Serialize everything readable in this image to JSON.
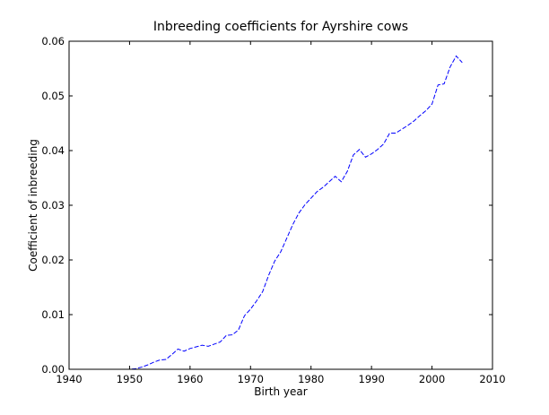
{
  "chart_data": {
    "type": "line",
    "title": "Inbreeding coefficients for Ayrshire cows",
    "xlabel": "Birth year",
    "ylabel": "Coefficient of inbreeding",
    "xlim": [
      1940,
      2010
    ],
    "ylim": [
      0.0,
      0.06
    ],
    "xticks": [
      "1940",
      "1950",
      "1960",
      "1970",
      "1980",
      "1990",
      "2000",
      "2010"
    ],
    "yticks": [
      "0.00",
      "0.01",
      "0.02",
      "0.03",
      "0.04",
      "0.05",
      "0.06"
    ],
    "grid": false,
    "line_style": "dashed",
    "colors": {
      "line": "#0000ff",
      "axes": "#000000"
    },
    "series": [
      {
        "x": [
          1940,
          1950,
          1951,
          1952,
          1953,
          1954,
          1955,
          1956,
          1957,
          1958,
          1959,
          1960,
          1961,
          1962,
          1963,
          1964,
          1965,
          1966,
          1967,
          1968,
          1969,
          1970,
          1971,
          1972,
          1973,
          1974,
          1975,
          1976,
          1977,
          1978,
          1979,
          1980,
          1981,
          1982,
          1983,
          1984,
          1985,
          1986,
          1987,
          1988,
          1989,
          1990,
          1991,
          1992,
          1993,
          1994,
          1995,
          1996,
          1997,
          1998,
          1999,
          2000,
          2001,
          2002,
          2003,
          2004,
          2005
        ],
        "y": [
          0.0,
          0.0,
          0.0001,
          0.0004,
          0.0008,
          0.0013,
          0.0017,
          0.0018,
          0.0027,
          0.0037,
          0.0033,
          0.0038,
          0.0041,
          0.0044,
          0.0042,
          0.0046,
          0.005,
          0.0062,
          0.0063,
          0.0072,
          0.0098,
          0.011,
          0.0125,
          0.0142,
          0.0172,
          0.0198,
          0.0215,
          0.024,
          0.0265,
          0.0286,
          0.0301,
          0.0313,
          0.0325,
          0.0333,
          0.0343,
          0.0353,
          0.0343,
          0.0362,
          0.0392,
          0.0402,
          0.0388,
          0.0394,
          0.0402,
          0.0412,
          0.0432,
          0.0432,
          0.0439,
          0.0446,
          0.0454,
          0.0464,
          0.0473,
          0.0485,
          0.052,
          0.0522,
          0.0553,
          0.0573,
          0.0561
        ]
      }
    ]
  }
}
